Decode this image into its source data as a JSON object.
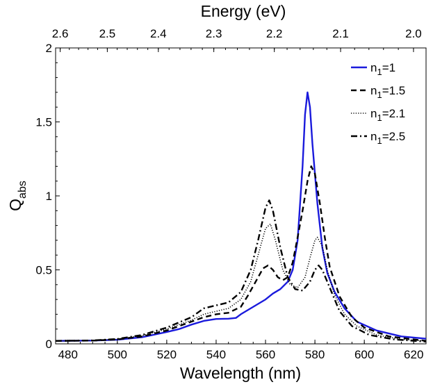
{
  "chart_data": {
    "type": "line",
    "xlabel": "Wavelength (nm)",
    "ylabel": "Q",
    "ylabel_sub": "abs",
    "top_xlabel": "Energy (eV)",
    "xlim": [
      475,
      625
    ],
    "ylim": [
      0,
      2
    ],
    "x_ticks": [
      "480",
      "500",
      "520",
      "540",
      "560",
      "580",
      "600",
      "620"
    ],
    "y_ticks": [
      "0",
      "0.5",
      "1",
      "1.5",
      "2"
    ],
    "top_ticks": [
      "2.6",
      "2.5",
      "2.4",
      "2.3",
      "2.2",
      "2.1",
      "2.0"
    ],
    "grid": false,
    "legend_position": "top-right",
    "series": [
      {
        "name": "n",
        "name_sub": "1",
        "name_suffix": "=1",
        "style": "solid",
        "color": "#1a1adc",
        "points": [
          [
            475,
            0.02
          ],
          [
            490,
            0.022
          ],
          [
            500,
            0.028
          ],
          [
            510,
            0.045
          ],
          [
            520,
            0.08
          ],
          [
            525,
            0.1
          ],
          [
            530,
            0.13
          ],
          [
            535,
            0.155
          ],
          [
            540,
            0.168
          ],
          [
            545,
            0.17
          ],
          [
            548,
            0.175
          ],
          [
            550,
            0.2
          ],
          [
            553,
            0.23
          ],
          [
            556,
            0.26
          ],
          [
            560,
            0.3
          ],
          [
            563,
            0.34
          ],
          [
            566,
            0.37
          ],
          [
            569,
            0.42
          ],
          [
            571,
            0.5
          ],
          [
            573,
            0.7
          ],
          [
            575,
            1.2
          ],
          [
            576,
            1.55
          ],
          [
            577,
            1.7
          ],
          [
            578,
            1.6
          ],
          [
            579,
            1.35
          ],
          [
            581,
            0.95
          ],
          [
            583,
            0.65
          ],
          [
            585,
            0.48
          ],
          [
            588,
            0.35
          ],
          [
            592,
            0.24
          ],
          [
            597,
            0.15
          ],
          [
            605,
            0.09
          ],
          [
            615,
            0.05
          ],
          [
            625,
            0.035
          ]
        ]
      },
      {
        "name": "n",
        "name_sub": "1",
        "name_suffix": "=1.5",
        "style": "dashed",
        "color": "#000000",
        "points": [
          [
            475,
            0.02
          ],
          [
            490,
            0.022
          ],
          [
            500,
            0.03
          ],
          [
            510,
            0.05
          ],
          [
            520,
            0.09
          ],
          [
            530,
            0.15
          ],
          [
            535,
            0.18
          ],
          [
            540,
            0.2
          ],
          [
            545,
            0.21
          ],
          [
            550,
            0.25
          ],
          [
            553,
            0.33
          ],
          [
            556,
            0.42
          ],
          [
            559,
            0.51
          ],
          [
            561,
            0.53
          ],
          [
            563,
            0.5
          ],
          [
            565,
            0.45
          ],
          [
            567,
            0.43
          ],
          [
            569,
            0.45
          ],
          [
            571,
            0.55
          ],
          [
            573,
            0.72
          ],
          [
            575,
            0.9
          ],
          [
            577,
            1.1
          ],
          [
            578.5,
            1.2
          ],
          [
            580,
            1.15
          ],
          [
            582,
            0.95
          ],
          [
            584,
            0.72
          ],
          [
            586,
            0.52
          ],
          [
            590,
            0.32
          ],
          [
            595,
            0.18
          ],
          [
            600,
            0.11
          ],
          [
            610,
            0.05
          ],
          [
            625,
            0.02
          ]
        ]
      },
      {
        "name": "n",
        "name_sub": "1",
        "name_suffix": "=2.1",
        "style": "dotted",
        "color": "#000000",
        "points": [
          [
            475,
            0.02
          ],
          [
            490,
            0.023
          ],
          [
            500,
            0.032
          ],
          [
            510,
            0.055
          ],
          [
            520,
            0.1
          ],
          [
            530,
            0.16
          ],
          [
            535,
            0.2
          ],
          [
            540,
            0.22
          ],
          [
            545,
            0.24
          ],
          [
            550,
            0.3
          ],
          [
            554,
            0.42
          ],
          [
            557,
            0.6
          ],
          [
            560,
            0.78
          ],
          [
            562,
            0.81
          ],
          [
            564,
            0.7
          ],
          [
            567,
            0.5
          ],
          [
            570,
            0.4
          ],
          [
            573,
            0.38
          ],
          [
            576,
            0.45
          ],
          [
            578,
            0.58
          ],
          [
            580,
            0.7
          ],
          [
            581,
            0.72
          ],
          [
            583,
            0.66
          ],
          [
            585,
            0.5
          ],
          [
            588,
            0.33
          ],
          [
            592,
            0.2
          ],
          [
            597,
            0.12
          ],
          [
            605,
            0.06
          ],
          [
            615,
            0.03
          ],
          [
            625,
            0.02
          ]
        ]
      },
      {
        "name": "n",
        "name_sub": "1",
        "name_suffix": "=2.5",
        "style": "dashdot",
        "color": "#000000",
        "points": [
          [
            475,
            0.02
          ],
          [
            490,
            0.023
          ],
          [
            500,
            0.033
          ],
          [
            510,
            0.06
          ],
          [
            520,
            0.11
          ],
          [
            530,
            0.18
          ],
          [
            535,
            0.24
          ],
          [
            540,
            0.26
          ],
          [
            545,
            0.28
          ],
          [
            550,
            0.35
          ],
          [
            554,
            0.5
          ],
          [
            557,
            0.7
          ],
          [
            560,
            0.92
          ],
          [
            561.5,
            0.97
          ],
          [
            563,
            0.9
          ],
          [
            566,
            0.65
          ],
          [
            569,
            0.45
          ],
          [
            572,
            0.37
          ],
          [
            575,
            0.36
          ],
          [
            578,
            0.42
          ],
          [
            580,
            0.5
          ],
          [
            581.5,
            0.53
          ],
          [
            583,
            0.5
          ],
          [
            586,
            0.38
          ],
          [
            590,
            0.22
          ],
          [
            595,
            0.12
          ],
          [
            602,
            0.06
          ],
          [
            612,
            0.03
          ],
          [
            625,
            0.015
          ]
        ]
      }
    ]
  }
}
